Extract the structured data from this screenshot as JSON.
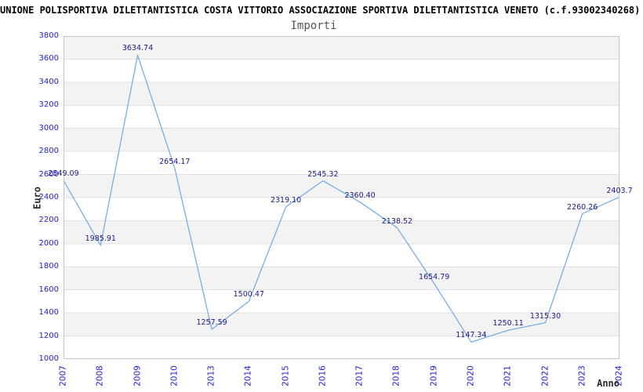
{
  "header": {
    "title": "UNIONE POLISPORTIVA DILETTANTISTICA COSTA VITTORIO ASSOCIAZIONE SPORTIVA DILETTANTISTICA VENETO (c.f.93002340268)",
    "subtitle": "Importi"
  },
  "chart_data": {
    "type": "line",
    "title": "Importi",
    "xlabel": "Anno",
    "ylabel": "Euro",
    "x_categories": [
      "2007",
      "2008",
      "2009",
      "2010",
      "2013",
      "2014",
      "2015",
      "2016",
      "2017",
      "2018",
      "2019",
      "2020",
      "2021",
      "2022",
      "2023",
      "2024"
    ],
    "series": [
      {
        "name": "Importi",
        "values": [
          2549.09,
          1985.91,
          3634.74,
          2654.17,
          1257.59,
          1500.47,
          2319.1,
          2545.32,
          2360.4,
          2138.52,
          1654.79,
          1147.34,
          1250.11,
          1315.3,
          2260.26,
          2403.7
        ]
      }
    ],
    "point_labels": [
      "2549.09",
      "1985.91",
      "3634.74",
      "2654.17",
      "1257.59",
      "1500.47",
      "2319.10",
      "2545.32",
      "2360.40",
      "2138.52",
      "1654.79",
      "1147.34",
      "1250.11",
      "1315.30",
      "2260.26",
      "2403.7"
    ],
    "ylim": [
      1000,
      3800
    ],
    "ytick_step": 200,
    "ytick_labels": [
      "3800",
      "3600",
      "3400",
      "3200",
      "3000",
      "2800",
      "2600",
      "2400",
      "2200",
      "2000",
      "1800",
      "1600",
      "1400",
      "1200",
      "1000"
    ],
    "grid": "horizontal gridlines with alternating zebra bands",
    "legend": "none",
    "colors": {
      "line": "#79ade4",
      "tick_label": "#2222cc",
      "point_label": "#1a1a88",
      "band": "#f3f3f3",
      "gridline": "#e0e0e0",
      "plot_border": "#c6c6c6"
    }
  }
}
